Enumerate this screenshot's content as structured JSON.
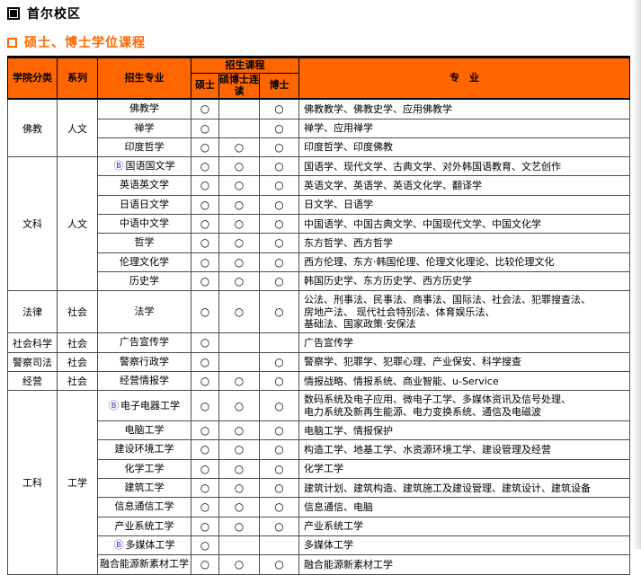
{
  "page": {
    "title": "首尔校区",
    "subtitle": "硕士、博士学位课程",
    "accent_color": "#ff6600"
  },
  "table": {
    "headers": {
      "college": "学院分类",
      "series": "系列",
      "major": "招生专业",
      "courses_group": "招生课程",
      "master": "硕士",
      "combined": "硕博士连读",
      "doctor": "博士",
      "specialty": "专　业"
    },
    "sections": [
      {
        "college": "佛教",
        "series": "人文",
        "rows": [
          {
            "prefix": "",
            "major": "佛教学",
            "master": "○",
            "combined": "",
            "doctor": "○",
            "specialty": "佛教教学、佛教史学、应用佛教学"
          },
          {
            "prefix": "",
            "major": "禅学",
            "master": "○",
            "combined": "",
            "doctor": "○",
            "specialty": "禅学、应用禅学"
          },
          {
            "prefix": "",
            "major": "印度哲学",
            "master": "○",
            "combined": "○",
            "doctor": "○",
            "specialty": "印度哲学、印度佛教"
          }
        ]
      },
      {
        "college": "文科",
        "series": "人文",
        "rows": [
          {
            "prefix": "Ⓑ",
            "major": "国语国文学",
            "master": "○",
            "combined": "○",
            "doctor": "○",
            "specialty": "国语学、现代文学、古典文学、对外韩国语教育、文艺创作"
          },
          {
            "prefix": "",
            "major": "英语英文学",
            "master": "○",
            "combined": "○",
            "doctor": "○",
            "specialty": "英语文学、英语学、英语文化学、翻译学"
          },
          {
            "prefix": "",
            "major": "日语日文学",
            "master": "○",
            "combined": "○",
            "doctor": "○",
            "specialty": "日文学、日语学"
          },
          {
            "prefix": "",
            "major": "中语中文学",
            "master": "○",
            "combined": "○",
            "doctor": "○",
            "specialty": "中国语学、中国古典文学、中国现代文学、中国文化学"
          },
          {
            "prefix": "",
            "major": "哲学",
            "master": "○",
            "combined": "○",
            "doctor": "○",
            "specialty": "东方哲学、西方哲学"
          },
          {
            "prefix": "",
            "major": "伦理文化学",
            "master": "○",
            "combined": "○",
            "doctor": "○",
            "specialty": "西方伦理、东方·韩国伦理、伦理文化理论、比较伦理文化"
          },
          {
            "prefix": "",
            "major": "历史学",
            "master": "○",
            "combined": "○",
            "doctor": "○",
            "specialty": "韩国历史学、东方历史学、西方历史学"
          }
        ]
      },
      {
        "college": "法律",
        "series": "社会",
        "rows": [
          {
            "prefix": "",
            "major": "法学",
            "master": "○",
            "combined": "○",
            "doctor": "○",
            "specialty": "公法、刑事法、民事法、商事法、国际法、社会法、犯罪搜查法、\n房地产法、 现代社会特别法、体育娱乐法、\n基础法、国家政策·安保法"
          }
        ]
      },
      {
        "college": "社会科学",
        "series": "社会",
        "rows": [
          {
            "prefix": "",
            "major": "广告宣传学",
            "master": "○",
            "combined": "",
            "doctor": "",
            "specialty": "广告宣传学"
          }
        ]
      },
      {
        "college": "警察司法",
        "series": "社会",
        "rows": [
          {
            "prefix": "",
            "major": "警察行政学",
            "master": "○",
            "combined": "",
            "doctor": "○",
            "specialty": "警察学、犯罪学、犯罪心理、产业保安、科学搜查"
          }
        ]
      },
      {
        "college": "经营",
        "series": "社会",
        "rows": [
          {
            "prefix": "",
            "major": "经营情报学",
            "master": "○",
            "combined": "○",
            "doctor": "○",
            "specialty": "情报战略、情报系统、商业智能、u-Service"
          }
        ]
      },
      {
        "college": "工科",
        "series": "工学",
        "rows": [
          {
            "prefix": "Ⓑ",
            "major": "电子电器工学",
            "master": "○",
            "combined": "○",
            "doctor": "○",
            "specialty": "数码系统及电子应用、微电子工学、多媒体资讯及信号处理、\n电力系统及新再生能源、电力变换系统、通信及电磁波"
          },
          {
            "prefix": "",
            "major": "电脑工学",
            "master": "○",
            "combined": "○",
            "doctor": "○",
            "specialty": "电脑工学、情报保护"
          },
          {
            "prefix": "",
            "major": "建设环境工学",
            "master": "○",
            "combined": "○",
            "doctor": "○",
            "specialty": "构造工学、地基工学、水资源环境工学、建设管理及经营"
          },
          {
            "prefix": "",
            "major": "化学工学",
            "master": "○",
            "combined": "○",
            "doctor": "○",
            "specialty": "化学工学"
          },
          {
            "prefix": "",
            "major": "建筑工学",
            "master": "○",
            "combined": "○",
            "doctor": "○",
            "specialty": "建筑计划、建筑构造、建筑施工及建设管理、建筑设计、建筑设备"
          },
          {
            "prefix": "",
            "major": "信息通信工学",
            "master": "○",
            "combined": "○",
            "doctor": "○",
            "specialty": "信息通信、电脑"
          },
          {
            "prefix": "",
            "major": "产业系统工学",
            "master": "○",
            "combined": "○",
            "doctor": "○",
            "specialty": "产业系统工学"
          },
          {
            "prefix": "Ⓑ",
            "major": "多媒体工学",
            "master": "○",
            "combined": "",
            "doctor": "",
            "specialty": "多媒体工学"
          },
          {
            "prefix": "",
            "major": "融合能源新素材工学",
            "master": "○",
            "combined": "○",
            "doctor": "○",
            "specialty": "融合能源新素材工学"
          }
        ]
      }
    ]
  }
}
